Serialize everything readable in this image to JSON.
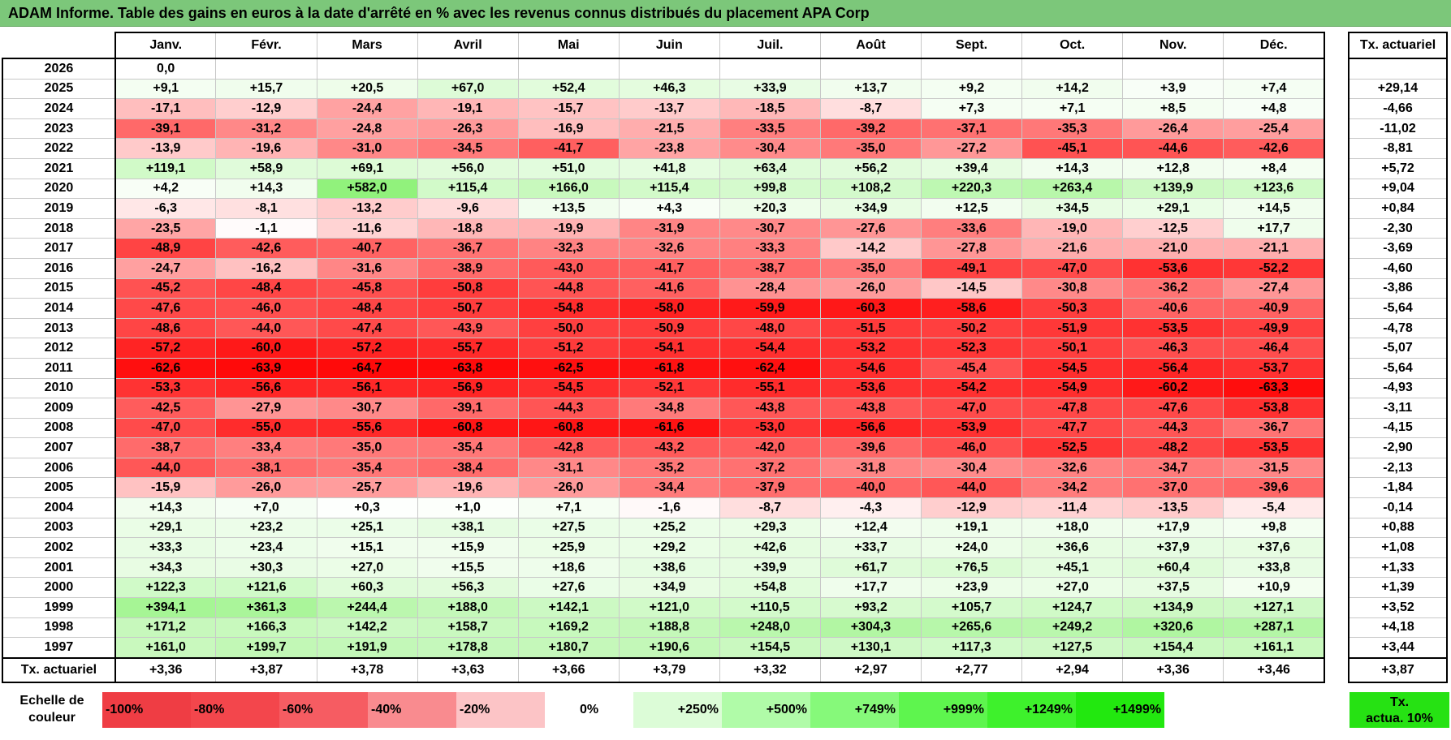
{
  "title": "ADAM Informe. Table des gains en euros à la date d'arrêté en % avec les revenus connus distribués du placement APA Corp",
  "months": [
    "Janv.",
    "Févr.",
    "Mars",
    "Avril",
    "Mai",
    "Juin",
    "Juil.",
    "Août",
    "Sept.",
    "Oct.",
    "Nov.",
    "Déc."
  ],
  "tx_header": "Tx. actuariel",
  "rows": [
    {
      "year": "2026",
      "values": [
        "0,0",
        "",
        "",
        "",
        "",
        "",
        "",
        "",
        "",
        "",
        "",
        ""
      ],
      "tx": ""
    },
    {
      "year": "2025",
      "values": [
        "+9,1",
        "+15,7",
        "+20,5",
        "+67,0",
        "+52,4",
        "+46,3",
        "+33,9",
        "+13,7",
        "+9,2",
        "+14,2",
        "+3,9",
        "+7,4"
      ],
      "tx": "+29,14"
    },
    {
      "year": "2024",
      "values": [
        "-17,1",
        "-12,9",
        "-24,4",
        "-19,1",
        "-15,7",
        "-13,7",
        "-18,5",
        "-8,7",
        "+7,3",
        "+7,1",
        "+8,5",
        "+4,8"
      ],
      "tx": "-4,66"
    },
    {
      "year": "2023",
      "values": [
        "-39,1",
        "-31,2",
        "-24,8",
        "-26,3",
        "-16,9",
        "-21,5",
        "-33,5",
        "-39,2",
        "-37,1",
        "-35,3",
        "-26,4",
        "-25,4"
      ],
      "tx": "-11,02"
    },
    {
      "year": "2022",
      "values": [
        "-13,9",
        "-19,6",
        "-31,0",
        "-34,5",
        "-41,7",
        "-23,8",
        "-30,4",
        "-35,0",
        "-27,2",
        "-45,1",
        "-44,6",
        "-42,6"
      ],
      "tx": "-8,81"
    },
    {
      "year": "2021",
      "values": [
        "+119,1",
        "+58,9",
        "+69,1",
        "+56,0",
        "+51,0",
        "+41,8",
        "+63,4",
        "+56,2",
        "+39,4",
        "+14,3",
        "+12,8",
        "+8,4"
      ],
      "tx": "+5,72"
    },
    {
      "year": "2020",
      "values": [
        "+4,2",
        "+14,3",
        "+582,0",
        "+115,4",
        "+166,0",
        "+115,4",
        "+99,8",
        "+108,2",
        "+220,3",
        "+263,4",
        "+139,9",
        "+123,6"
      ],
      "tx": "+9,04"
    },
    {
      "year": "2019",
      "values": [
        "-6,3",
        "-8,1",
        "-13,2",
        "-9,6",
        "+13,5",
        "+4,3",
        "+20,3",
        "+34,9",
        "+12,5",
        "+34,5",
        "+29,1",
        "+14,5"
      ],
      "tx": "+0,84"
    },
    {
      "year": "2018",
      "values": [
        "-23,5",
        "-1,1",
        "-11,6",
        "-18,8",
        "-19,9",
        "-31,9",
        "-30,7",
        "-27,6",
        "-33,6",
        "-19,0",
        "-12,5",
        "+17,7"
      ],
      "tx": "-2,30"
    },
    {
      "year": "2017",
      "values": [
        "-48,9",
        "-42,6",
        "-40,7",
        "-36,7",
        "-32,3",
        "-32,6",
        "-33,3",
        "-14,2",
        "-27,8",
        "-21,6",
        "-21,0",
        "-21,1"
      ],
      "tx": "-3,69"
    },
    {
      "year": "2016",
      "values": [
        "-24,7",
        "-16,2",
        "-31,6",
        "-38,9",
        "-43,0",
        "-41,7",
        "-38,7",
        "-35,0",
        "-49,1",
        "-47,0",
        "-53,6",
        "-52,2"
      ],
      "tx": "-4,60"
    },
    {
      "year": "2015",
      "values": [
        "-45,2",
        "-48,4",
        "-45,8",
        "-50,8",
        "-44,8",
        "-41,6",
        "-28,4",
        "-26,0",
        "-14,5",
        "-30,8",
        "-36,2",
        "-27,4"
      ],
      "tx": "-3,86"
    },
    {
      "year": "2014",
      "values": [
        "-47,6",
        "-46,0",
        "-48,4",
        "-50,7",
        "-54,8",
        "-58,0",
        "-59,9",
        "-60,3",
        "-58,6",
        "-50,3",
        "-40,6",
        "-40,9"
      ],
      "tx": "-5,64"
    },
    {
      "year": "2013",
      "values": [
        "-48,6",
        "-44,0",
        "-47,4",
        "-43,9",
        "-50,0",
        "-50,9",
        "-48,0",
        "-51,5",
        "-50,2",
        "-51,9",
        "-53,5",
        "-49,9"
      ],
      "tx": "-4,78"
    },
    {
      "year": "2012",
      "values": [
        "-57,2",
        "-60,0",
        "-57,2",
        "-55,7",
        "-51,2",
        "-54,1",
        "-54,4",
        "-53,2",
        "-52,3",
        "-50,1",
        "-46,3",
        "-46,4"
      ],
      "tx": "-5,07"
    },
    {
      "year": "2011",
      "values": [
        "-62,6",
        "-63,9",
        "-64,7",
        "-63,8",
        "-62,5",
        "-61,8",
        "-62,4",
        "-54,6",
        "-45,4",
        "-54,5",
        "-56,4",
        "-53,7"
      ],
      "tx": "-5,64"
    },
    {
      "year": "2010",
      "values": [
        "-53,3",
        "-56,6",
        "-56,1",
        "-56,9",
        "-54,5",
        "-52,1",
        "-55,1",
        "-53,6",
        "-54,2",
        "-54,9",
        "-60,2",
        "-63,3"
      ],
      "tx": "-4,93"
    },
    {
      "year": "2009",
      "values": [
        "-42,5",
        "-27,9",
        "-30,7",
        "-39,1",
        "-44,3",
        "-34,8",
        "-43,8",
        "-43,8",
        "-47,0",
        "-47,8",
        "-47,6",
        "-53,8"
      ],
      "tx": "-3,11"
    },
    {
      "year": "2008",
      "values": [
        "-47,0",
        "-55,0",
        "-55,6",
        "-60,8",
        "-60,8",
        "-61,6",
        "-53,0",
        "-56,6",
        "-53,9",
        "-47,7",
        "-44,3",
        "-36,7"
      ],
      "tx": "-4,15"
    },
    {
      "year": "2007",
      "values": [
        "-38,7",
        "-33,4",
        "-35,0",
        "-35,4",
        "-42,8",
        "-43,2",
        "-42,0",
        "-39,6",
        "-46,0",
        "-52,5",
        "-48,2",
        "-53,5"
      ],
      "tx": "-2,90"
    },
    {
      "year": "2006",
      "values": [
        "-44,0",
        "-38,1",
        "-35,4",
        "-38,4",
        "-31,1",
        "-35,2",
        "-37,2",
        "-31,8",
        "-30,4",
        "-32,6",
        "-34,7",
        "-31,5"
      ],
      "tx": "-2,13"
    },
    {
      "year": "2005",
      "values": [
        "-15,9",
        "-26,0",
        "-25,7",
        "-19,6",
        "-26,0",
        "-34,4",
        "-37,9",
        "-40,0",
        "-44,0",
        "-34,2",
        "-37,0",
        "-39,6"
      ],
      "tx": "-1,84"
    },
    {
      "year": "2004",
      "values": [
        "+14,3",
        "+7,0",
        "+0,3",
        "+1,0",
        "+7,1",
        "-1,6",
        "-8,7",
        "-4,3",
        "-12,9",
        "-11,4",
        "-13,5",
        "-5,4"
      ],
      "tx": "-0,14"
    },
    {
      "year": "2003",
      "values": [
        "+29,1",
        "+23,2",
        "+25,1",
        "+38,1",
        "+27,5",
        "+25,2",
        "+29,3",
        "+12,4",
        "+19,1",
        "+18,0",
        "+17,9",
        "+9,8"
      ],
      "tx": "+0,88"
    },
    {
      "year": "2002",
      "values": [
        "+33,3",
        "+23,4",
        "+15,1",
        "+15,9",
        "+25,9",
        "+29,2",
        "+42,6",
        "+33,7",
        "+24,0",
        "+36,6",
        "+37,9",
        "+37,6"
      ],
      "tx": "+1,08"
    },
    {
      "year": "2001",
      "values": [
        "+34,3",
        "+30,3",
        "+27,0",
        "+15,5",
        "+18,6",
        "+38,6",
        "+39,9",
        "+61,7",
        "+76,5",
        "+45,1",
        "+60,4",
        "+33,8"
      ],
      "tx": "+1,33"
    },
    {
      "year": "2000",
      "values": [
        "+122,3",
        "+121,6",
        "+60,3",
        "+56,3",
        "+27,6",
        "+34,9",
        "+54,8",
        "+17,7",
        "+23,9",
        "+27,0",
        "+37,5",
        "+10,9"
      ],
      "tx": "+1,39"
    },
    {
      "year": "1999",
      "values": [
        "+394,1",
        "+361,3",
        "+244,4",
        "+188,0",
        "+142,1",
        "+121,0",
        "+110,5",
        "+93,2",
        "+105,7",
        "+124,7",
        "+134,9",
        "+127,1"
      ],
      "tx": "+3,52"
    },
    {
      "year": "1998",
      "values": [
        "+171,2",
        "+166,3",
        "+142,2",
        "+158,7",
        "+169,2",
        "+188,8",
        "+248,0",
        "+304,3",
        "+265,6",
        "+249,2",
        "+320,6",
        "+287,1"
      ],
      "tx": "+4,18"
    },
    {
      "year": "1997",
      "values": [
        "+161,0",
        "+199,7",
        "+191,9",
        "+178,8",
        "+180,7",
        "+190,6",
        "+154,5",
        "+130,1",
        "+117,3",
        "+127,5",
        "+154,4",
        "+161,1"
      ],
      "tx": "+3,44"
    }
  ],
  "footer": {
    "label": "Tx. actuariel",
    "values": [
      "+3,36",
      "+3,87",
      "+3,78",
      "+3,63",
      "+3,66",
      "+3,79",
      "+3,32",
      "+2,97",
      "+2,77",
      "+2,94",
      "+3,36",
      "+3,46"
    ],
    "tx": "+3,87"
  },
  "legend": {
    "label_line1": "Echelle de",
    "label_line2": "couleur",
    "cells": [
      {
        "label": "-100%",
        "color": "#ef3d44",
        "align": "left"
      },
      {
        "label": "-80%",
        "color": "#f3464c",
        "align": "left"
      },
      {
        "label": "-60%",
        "color": "#f65c62",
        "align": "left"
      },
      {
        "label": "-40%",
        "color": "#f98b8f",
        "align": "left"
      },
      {
        "label": "-20%",
        "color": "#fcc4c6",
        "align": "left"
      },
      {
        "label": "0%",
        "color": "#ffffff",
        "align": "center"
      },
      {
        "label": "+250%",
        "color": "#dcfcd7",
        "align": "right"
      },
      {
        "label": "+500%",
        "color": "#b0fba8",
        "align": "right"
      },
      {
        "label": "+749%",
        "color": "#86f97a",
        "align": "right"
      },
      {
        "label": "+999%",
        "color": "#5ef54e",
        "align": "right"
      },
      {
        "label": "+1249%",
        "color": "#3ef12c",
        "align": "right"
      },
      {
        "label": "+1499%",
        "color": "#22e80f",
        "align": "right"
      }
    ],
    "tx_line1": "Tx.",
    "tx_line2": "actua. 10%",
    "tx_color": "#26e213"
  }
}
